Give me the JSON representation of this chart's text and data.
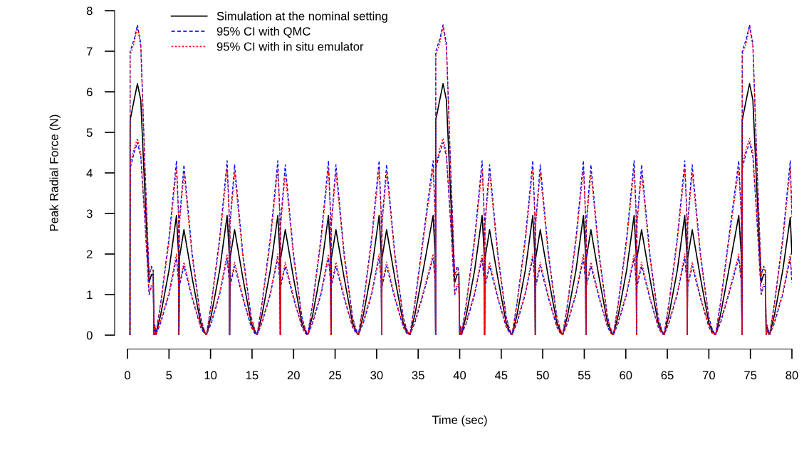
{
  "chart_data": {
    "type": "line",
    "xlabel": "Time (sec)",
    "ylabel": "Peak Radial Force (N)",
    "xlim": [
      0,
      80
    ],
    "ylim": [
      0,
      8
    ],
    "xticks": [
      0,
      5,
      10,
      15,
      20,
      25,
      30,
      35,
      40,
      45,
      50,
      55,
      60,
      65,
      70,
      75,
      80
    ],
    "yticks": [
      0,
      1,
      2,
      3,
      4,
      5,
      6,
      7,
      8
    ],
    "grid": false,
    "legend": "top left",
    "x": [
      0.3,
      0.32,
      0.8,
      1.2,
      1.6,
      2.1,
      2.6,
      2.9,
      3.1,
      3.2,
      3.3,
      3.4,
      4.0,
      5.0,
      5.9,
      6.15,
      6.2,
      6.25,
      6.8,
      7.8,
      8.8,
      9.2,
      9.5,
      10.1,
      11.1,
      12.0,
      12.25,
      12.3,
      12.35,
      12.9,
      13.9,
      14.9,
      15.3,
      15.6,
      16.2,
      17.2,
      18.1,
      18.35,
      18.4,
      18.45,
      19.0,
      20.0,
      21.0,
      21.4,
      21.7,
      22.3,
      23.3,
      24.2,
      24.45,
      24.5,
      24.55,
      25.1,
      26.1,
      27.1,
      27.5,
      27.8,
      28.4,
      29.4,
      30.3,
      30.55,
      30.6,
      30.65,
      31.2,
      32.2,
      33.2,
      33.6,
      34.0,
      34.6,
      35.6,
      36.8,
      37.05,
      37.1,
      37.12,
      37.6,
      38.0,
      38.4,
      38.9,
      39.4,
      39.7,
      39.9,
      40.0,
      40.1,
      40.2,
      40.8,
      41.8,
      42.7,
      42.95,
      43.0,
      43.05,
      43.6,
      44.6,
      45.6,
      46.0,
      46.3,
      46.9,
      47.9,
      48.8,
      49.05,
      49.1,
      49.15,
      49.7,
      50.7,
      51.7,
      52.1,
      52.4,
      53.0,
      54.0,
      54.9,
      55.15,
      55.2,
      55.25,
      55.8,
      56.8,
      57.8,
      58.2,
      58.5,
      59.1,
      60.1,
      61.0,
      61.25,
      61.3,
      61.35,
      61.9,
      62.9,
      63.9,
      64.3,
      64.6,
      65.2,
      66.2,
      67.1,
      67.35,
      67.4,
      67.45,
      68.0,
      69.0,
      70.0,
      70.4,
      70.8,
      71.4,
      72.4,
      73.6,
      73.9,
      74.0,
      74.02,
      74.5,
      74.9,
      75.3,
      75.8,
      76.3,
      76.6,
      76.8,
      76.9,
      77.0,
      77.3,
      77.9,
      78.9,
      79.8,
      80.0
    ],
    "series": [
      {
        "name": "Simulation at the nominal setting",
        "color": "#000000",
        "line_style": "solid",
        "values": [
          0,
          5.3,
          5.8,
          6.2,
          5.8,
          3.5,
          1.3,
          1.5,
          1.5,
          0,
          0.2,
          0,
          0.5,
          1.6,
          2.95,
          2.0,
          0,
          1.9,
          2.6,
          1.4,
          0.3,
          0.1,
          0,
          0.5,
          1.6,
          2.95,
          2.0,
          0,
          1.9,
          2.6,
          1.4,
          0.3,
          0.1,
          0,
          0.5,
          1.6,
          2.95,
          2.0,
          0,
          1.9,
          2.6,
          1.4,
          0.3,
          0.1,
          0,
          0.5,
          1.6,
          2.95,
          2.0,
          0,
          1.9,
          2.6,
          1.4,
          0.3,
          0.1,
          0,
          0.5,
          1.6,
          2.95,
          2.0,
          0,
          1.9,
          2.6,
          1.4,
          0.3,
          0.1,
          0,
          0.5,
          1.6,
          2.95,
          2.0,
          0,
          5.3,
          5.8,
          6.2,
          5.8,
          3.5,
          1.3,
          1.5,
          1.5,
          0,
          0.2,
          0,
          0.5,
          1.6,
          2.95,
          2.0,
          0,
          1.9,
          2.6,
          1.4,
          0.3,
          0.1,
          0,
          0.5,
          1.6,
          2.95,
          2.0,
          0,
          1.9,
          2.6,
          1.4,
          0.3,
          0.1,
          0,
          0.5,
          1.6,
          2.95,
          2.0,
          0,
          1.9,
          2.6,
          1.4,
          0.3,
          0.1,
          0,
          0.5,
          1.6,
          2.95,
          2.0,
          0,
          1.9,
          2.6,
          1.4,
          0.3,
          0.1,
          0,
          0.5,
          1.6,
          2.95,
          2.0,
          0,
          1.9,
          2.6,
          1.4,
          0.3,
          0.1,
          0,
          0.5,
          1.6,
          2.95,
          2.0,
          0,
          5.3,
          5.8,
          6.2,
          5.8,
          3.5,
          1.3,
          1.5,
          1.5,
          0,
          0.2,
          0,
          0.5,
          1.6,
          2.9,
          2.0
        ]
      },
      {
        "name": "95% CI with QMC",
        "color": "#0000ff",
        "line_style": "dashed",
        "values": [
          0,
          7.0,
          7.3,
          7.65,
          7.2,
          4.2,
          1.5,
          1.7,
          1.6,
          0,
          0.25,
          0,
          0.8,
          2.4,
          4.3,
          3.0,
          0,
          2.8,
          4.2,
          2.0,
          0.45,
          0.15,
          0,
          0.8,
          2.4,
          4.3,
          3.0,
          0,
          2.8,
          4.2,
          2.0,
          0.45,
          0.15,
          0,
          0.8,
          2.4,
          4.3,
          3.0,
          0,
          2.8,
          4.2,
          2.0,
          0.45,
          0.15,
          0,
          0.8,
          2.4,
          4.3,
          3.0,
          0,
          2.8,
          4.2,
          2.0,
          0.45,
          0.15,
          0,
          0.8,
          2.4,
          4.3,
          3.0,
          0,
          2.8,
          4.2,
          2.0,
          0.45,
          0.15,
          0,
          0.8,
          2.4,
          4.3,
          3.0,
          0,
          7.0,
          7.3,
          7.65,
          7.2,
          4.2,
          1.5,
          1.7,
          1.6,
          0,
          0.25,
          0,
          0.8,
          2.4,
          4.3,
          3.0,
          0,
          2.8,
          4.2,
          2.0,
          0.45,
          0.15,
          0,
          0.8,
          2.4,
          4.3,
          3.0,
          0,
          2.8,
          4.2,
          2.0,
          0.45,
          0.15,
          0,
          0.8,
          2.4,
          4.3,
          3.0,
          0,
          2.8,
          4.2,
          2.0,
          0.45,
          0.15,
          0,
          0.8,
          2.4,
          4.3,
          3.0,
          0,
          2.8,
          4.2,
          2.0,
          0.45,
          0.15,
          0,
          0.8,
          2.4,
          4.3,
          3.0,
          0,
          2.8,
          4.2,
          2.0,
          0.45,
          0.15,
          0,
          0.8,
          2.4,
          4.3,
          3.0,
          0,
          7.0,
          7.3,
          7.65,
          7.2,
          4.2,
          1.5,
          1.7,
          1.6,
          0,
          0.25,
          0,
          0.8,
          2.4,
          4.3,
          3.0
        ]
      },
      {
        "color": "#0000ff",
        "line_style": "dashed",
        "values": [
          0,
          4.1,
          4.5,
          4.75,
          4.4,
          2.8,
          1.0,
          1.2,
          1.2,
          0,
          0.1,
          0,
          0.3,
          1.0,
          1.9,
          1.3,
          0,
          1.2,
          1.7,
          0.9,
          0.2,
          0.05,
          0,
          0.3,
          1.0,
          1.9,
          1.3,
          0,
          1.2,
          1.7,
          0.9,
          0.2,
          0.05,
          0,
          0.3,
          1.0,
          1.9,
          1.3,
          0,
          1.2,
          1.7,
          0.9,
          0.2,
          0.05,
          0,
          0.3,
          1.0,
          1.9,
          1.3,
          0,
          1.2,
          1.7,
          0.9,
          0.2,
          0.05,
          0,
          0.3,
          1.0,
          1.9,
          1.3,
          0,
          1.2,
          1.7,
          0.9,
          0.2,
          0.05,
          0,
          0.3,
          1.0,
          1.9,
          1.3,
          0,
          4.1,
          4.5,
          4.75,
          4.4,
          2.8,
          1.0,
          1.2,
          1.2,
          0,
          0.1,
          0,
          0.3,
          1.0,
          1.9,
          1.3,
          0,
          1.2,
          1.7,
          0.9,
          0.2,
          0.05,
          0,
          0.3,
          1.0,
          1.9,
          1.3,
          0,
          1.2,
          1.7,
          0.9,
          0.2,
          0.05,
          0,
          0.3,
          1.0,
          1.9,
          1.3,
          0,
          1.2,
          1.7,
          0.9,
          0.2,
          0.05,
          0,
          0.3,
          1.0,
          1.9,
          1.3,
          0,
          1.2,
          1.7,
          0.9,
          0.2,
          0.05,
          0,
          0.3,
          1.0,
          1.9,
          1.3,
          0,
          1.2,
          1.7,
          0.9,
          0.2,
          0.05,
          0,
          0.3,
          1.0,
          1.9,
          1.3,
          0,
          4.1,
          4.5,
          4.75,
          4.4,
          2.8,
          1.0,
          1.2,
          1.2,
          0,
          0.1,
          0,
          0.3,
          1.0,
          1.9,
          1.3
        ]
      },
      {
        "name": "95% CI with in situ emulator",
        "color": "#ff0000",
        "line_style": "dotted",
        "values": [
          0,
          6.9,
          7.2,
          7.6,
          7.1,
          4.1,
          1.45,
          1.65,
          1.55,
          0,
          0.22,
          0,
          0.75,
          2.3,
          4.1,
          2.9,
          0,
          2.7,
          4.0,
          1.9,
          0.4,
          0.15,
          0,
          0.75,
          2.3,
          4.1,
          2.9,
          0,
          2.7,
          4.0,
          1.9,
          0.4,
          0.15,
          0,
          0.75,
          2.3,
          4.1,
          2.9,
          0,
          2.7,
          4.0,
          1.9,
          0.4,
          0.15,
          0,
          0.75,
          2.3,
          4.1,
          2.9,
          0,
          2.7,
          4.0,
          1.9,
          0.4,
          0.15,
          0,
          0.75,
          2.3,
          4.1,
          2.9,
          0,
          2.7,
          4.0,
          1.9,
          0.4,
          0.15,
          0,
          0.75,
          2.3,
          4.1,
          2.9,
          0,
          6.9,
          7.2,
          7.6,
          7.1,
          4.1,
          1.45,
          1.65,
          1.55,
          0,
          0.22,
          0,
          0.75,
          2.3,
          4.1,
          2.9,
          0,
          2.7,
          4.0,
          1.9,
          0.4,
          0.15,
          0,
          0.75,
          2.3,
          4.1,
          2.9,
          0,
          2.7,
          4.0,
          1.9,
          0.4,
          0.15,
          0,
          0.75,
          2.3,
          4.1,
          2.9,
          0,
          2.7,
          4.0,
          1.9,
          0.4,
          0.15,
          0,
          0.75,
          2.3,
          4.1,
          2.9,
          0,
          2.7,
          4.0,
          1.9,
          0.4,
          0.15,
          0,
          0.75,
          2.3,
          4.1,
          2.9,
          0,
          2.7,
          4.0,
          1.9,
          0.4,
          0.15,
          0,
          0.75,
          2.3,
          4.1,
          2.9,
          0,
          6.9,
          7.2,
          7.6,
          7.1,
          4.1,
          1.45,
          1.65,
          1.55,
          0,
          0.22,
          0,
          0.75,
          2.3,
          4.1,
          2.9
        ]
      },
      {
        "color": "#ff0000",
        "line_style": "dotted",
        "values": [
          0,
          4.2,
          4.6,
          4.85,
          4.5,
          2.9,
          1.05,
          1.25,
          1.25,
          0,
          0.1,
          0,
          0.35,
          1.05,
          2.0,
          1.35,
          0,
          1.25,
          1.8,
          0.95,
          0.22,
          0.07,
          0,
          0.35,
          1.05,
          2.0,
          1.35,
          0,
          1.25,
          1.8,
          0.95,
          0.22,
          0.07,
          0,
          0.35,
          1.05,
          2.0,
          1.35,
          0,
          1.25,
          1.8,
          0.95,
          0.22,
          0.07,
          0,
          0.35,
          1.05,
          2.0,
          1.35,
          0,
          1.25,
          1.8,
          0.95,
          0.22,
          0.07,
          0,
          0.35,
          1.05,
          2.0,
          1.35,
          0,
          1.25,
          1.8,
          0.95,
          0.22,
          0.07,
          0,
          0.35,
          1.05,
          2.0,
          1.35,
          0,
          4.2,
          4.6,
          4.85,
          4.5,
          2.9,
          1.05,
          1.25,
          1.25,
          0,
          0.1,
          0,
          0.35,
          1.05,
          2.0,
          1.35,
          0,
          1.25,
          1.8,
          0.95,
          0.22,
          0.07,
          0,
          0.35,
          1.05,
          2.0,
          1.35,
          0,
          1.25,
          1.8,
          0.95,
          0.22,
          0.07,
          0,
          0.35,
          1.05,
          2.0,
          1.35,
          0,
          1.25,
          1.8,
          0.95,
          0.22,
          0.07,
          0,
          0.35,
          1.05,
          2.0,
          1.35,
          0,
          1.25,
          1.8,
          0.95,
          0.22,
          0.07,
          0,
          0.35,
          1.05,
          2.0,
          1.35,
          0,
          1.25,
          1.8,
          0.95,
          0.22,
          0.07,
          0,
          0.35,
          1.05,
          2.0,
          1.35,
          0,
          4.2,
          4.6,
          4.85,
          4.5,
          2.9,
          1.05,
          1.25,
          1.25,
          0,
          0.1,
          0,
          0.35,
          1.05,
          2.0,
          1.35
        ]
      }
    ]
  }
}
